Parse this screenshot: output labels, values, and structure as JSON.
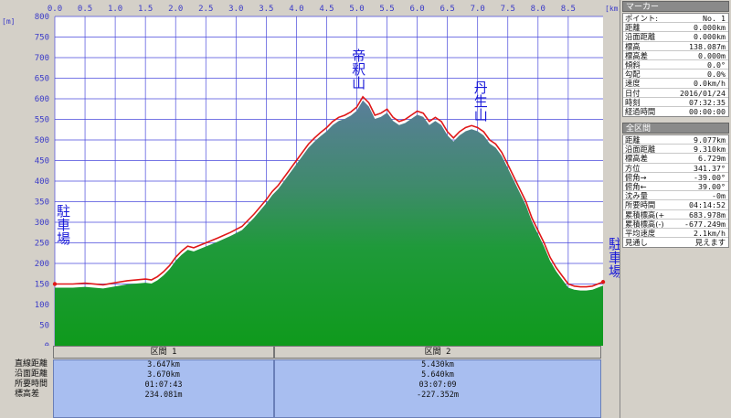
{
  "chart_data": {
    "type": "area",
    "x_unit": "[km]",
    "y_unit": "[m]",
    "x_ticks": [
      "0.0",
      "0.5",
      "1.0",
      "1.5",
      "2.0",
      "2.5",
      "3.0",
      "3.5",
      "4.0",
      "4.5",
      "5.0",
      "5.5",
      "6.0",
      "6.5",
      "7.0",
      "7.5",
      "8.0",
      "8.5"
    ],
    "y_ticks": [
      "0",
      "50",
      "100",
      "150",
      "200",
      "250",
      "300",
      "350",
      "400",
      "450",
      "500",
      "550",
      "600",
      "650",
      "700",
      "750",
      "800"
    ],
    "xlim": [
      0,
      9.077
    ],
    "ylim": [
      0,
      800
    ],
    "grid": true,
    "series": [
      {
        "name": "",
        "color": "#e01818",
        "x": [
          0,
          0.3,
          0.5,
          0.8,
          1.0,
          1.2,
          1.5,
          1.6,
          1.7,
          1.8,
          1.9,
          2.0,
          2.1,
          2.2,
          2.3,
          2.5,
          2.7,
          2.9,
          3.1,
          3.3,
          3.5,
          3.6,
          3.7,
          3.8,
          3.9,
          4.0,
          4.1,
          4.2,
          4.3,
          4.4,
          4.5,
          4.6,
          4.7,
          4.8,
          4.9,
          5.0,
          5.1,
          5.2,
          5.3,
          5.4,
          5.5,
          5.6,
          5.7,
          5.8,
          5.9,
          6.0,
          6.1,
          6.2,
          6.3,
          6.4,
          6.5,
          6.6,
          6.7,
          6.8,
          6.9,
          7.0,
          7.1,
          7.2,
          7.3,
          7.4,
          7.5,
          7.6,
          7.7,
          7.8,
          7.9,
          8.0,
          8.1,
          8.2,
          8.3,
          8.4,
          8.5,
          8.6,
          8.7,
          8.8,
          8.9,
          9.077
        ],
        "y": [
          150,
          150,
          152,
          148,
          153,
          158,
          162,
          160,
          168,
          180,
          195,
          215,
          230,
          242,
          238,
          250,
          262,
          275,
          290,
          320,
          355,
          375,
          390,
          410,
          430,
          450,
          470,
          490,
          505,
          518,
          530,
          545,
          555,
          560,
          568,
          580,
          605,
          590,
          560,
          565,
          575,
          555,
          545,
          550,
          560,
          570,
          565,
          545,
          555,
          545,
          520,
          505,
          520,
          530,
          535,
          530,
          520,
          500,
          490,
          470,
          440,
          410,
          380,
          350,
          310,
          280,
          250,
          215,
          190,
          170,
          150,
          145,
          143,
          143,
          145,
          155
        ]
      }
    ],
    "landmarks": [
      {
        "label": "帝\n釈\n山",
        "chars": [
          "帝",
          "釈",
          "山"
        ],
        "x": 5.1
      },
      {
        "label": "丹\n生\n山",
        "chars": [
          "丹",
          "生",
          "山"
        ],
        "x": 7.0
      },
      {
        "label": "駐\n車\n場",
        "chars": [
          "駐",
          "車",
          "場"
        ],
        "x": 0
      },
      {
        "label": "駐\n車\n場",
        "chars": [
          "駐",
          "車",
          "場"
        ],
        "x": 9.077
      }
    ],
    "sections": [
      {
        "title": "区間 1",
        "from_km": 0,
        "to_km": 3.647
      },
      {
        "title": "区間 2",
        "from_km": 3.647,
        "to_km": 9.077
      }
    ]
  },
  "section_table": {
    "row_labels": [
      "直線距離",
      "沿面距離",
      "所要時間",
      "標高差"
    ],
    "columns": [
      {
        "title": "区間 1",
        "values": [
          "3.647km",
          "3.670km",
          "01:07:43",
          "234.081m"
        ]
      },
      {
        "title": "区間 2",
        "values": [
          "5.430km",
          "5.640km",
          "03:07:09",
          "-227.352m"
        ]
      }
    ]
  },
  "marker_panel": {
    "title": "マーカー",
    "rows": [
      {
        "k": "ポイント:",
        "v": "No. 1"
      },
      {
        "k": "距離",
        "v": "0.000km"
      },
      {
        "k": "沿面距離",
        "v": "0.000km"
      },
      {
        "k": "標高",
        "v": "138.087m"
      },
      {
        "k": "標高差",
        "v": "0.000m"
      },
      {
        "k": "傾斜",
        "v": "0.0°"
      },
      {
        "k": "勾配",
        "v": "0.0%"
      },
      {
        "k": "速度",
        "v": "0.0km/h"
      },
      {
        "k": "日付",
        "v": "2016/01/24"
      },
      {
        "k": "時刻",
        "v": "07:32:35"
      },
      {
        "k": "経過時間",
        "v": "00:00:00"
      }
    ]
  },
  "total_panel": {
    "title": "全区間",
    "rows": [
      {
        "k": "距離",
        "v": "9.077km"
      },
      {
        "k": "沿面距離",
        "v": "9.310km"
      },
      {
        "k": "標高差",
        "v": "6.729m"
      },
      {
        "k": "方位",
        "v": "341.37°"
      },
      {
        "k": "俯角→",
        "v": "-39.00°"
      },
      {
        "k": "俯角←",
        "v": "39.00°"
      },
      {
        "k": "沈み量",
        "v": "-0m"
      },
      {
        "k": "所要時間",
        "v": "04:14:52"
      },
      {
        "k": "累積標高(+)",
        "v": "683.978m"
      },
      {
        "k": "累積標高(-)",
        "v": "-677.249m"
      },
      {
        "k": "平均速度",
        "v": "2.1km/h"
      },
      {
        "k": "見通し",
        "v": "見えます"
      }
    ]
  }
}
